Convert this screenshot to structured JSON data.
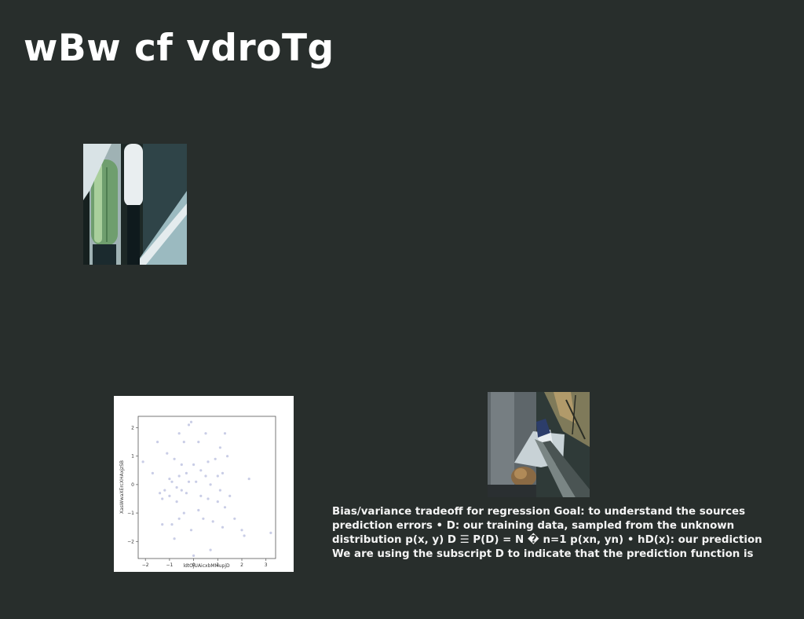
{
  "slide": {
    "title": "wBw cf vdroTg",
    "body_lines": [
      "Bias/variance tradeoff for regression Goal: to understand the sources",
      "prediction errors • D: our training data, sampled from the unknown",
      "distribution p(x, y) D ☰ P(D) = N � n=1 p(xn, yn) • hD(x): our prediction",
      "We are using the subscript D to indicate that the prediction function is"
    ]
  },
  "colors": {
    "background": "#282e2c",
    "point": "#c9cde6",
    "text": "#ffffff"
  },
  "chart_data": {
    "type": "scatter",
    "xlabel": "ldtOjUAicxbMMupjD",
    "ylabel": "XasWwaXErcXHAxjzSB",
    "xlim": [
      -2.3,
      3.4
    ],
    "ylim": [
      -2.6,
      2.4
    ],
    "xticks": [
      -2,
      -1,
      0,
      1,
      2,
      3
    ],
    "yticks": [
      -2,
      -1,
      0,
      1,
      2
    ],
    "grid": false,
    "points": [
      [
        -2.1,
        0.8
      ],
      [
        -1.7,
        0.4
      ],
      [
        -1.5,
        1.5
      ],
      [
        -1.4,
        -0.3
      ],
      [
        -1.3,
        -0.5
      ],
      [
        -1.3,
        -1.4
      ],
      [
        -1.2,
        -0.2
      ],
      [
        -1.1,
        1.1
      ],
      [
        -1.0,
        0.2
      ],
      [
        -1.0,
        -0.4
      ],
      [
        -0.9,
        0.1
      ],
      [
        -0.9,
        -1.4
      ],
      [
        -0.8,
        0.9
      ],
      [
        -0.8,
        -1.9
      ],
      [
        -0.7,
        -0.6
      ],
      [
        -0.7,
        -0.1
      ],
      [
        -0.6,
        1.8
      ],
      [
        -0.6,
        0.3
      ],
      [
        -0.5,
        0.7
      ],
      [
        -0.5,
        -0.2
      ],
      [
        -0.4,
        1.5
      ],
      [
        -0.4,
        -1.0
      ],
      [
        -0.3,
        0.4
      ],
      [
        -0.3,
        -0.3
      ],
      [
        -0.2,
        2.1
      ],
      [
        -0.2,
        0.1
      ],
      [
        -0.1,
        2.2
      ],
      [
        -0.1,
        -1.6
      ],
      [
        0.0,
        0.7
      ],
      [
        0.0,
        -2.5
      ],
      [
        0.1,
        0.1
      ],
      [
        0.2,
        1.5
      ],
      [
        0.3,
        0.5
      ],
      [
        0.3,
        -0.4
      ],
      [
        0.4,
        -1.2
      ],
      [
        0.5,
        1.8
      ],
      [
        0.5,
        0.3
      ],
      [
        0.6,
        -0.5
      ],
      [
        0.7,
        -2.3
      ],
      [
        0.7,
        0.0
      ],
      [
        0.8,
        -1.3
      ],
      [
        0.9,
        0.9
      ],
      [
        1.0,
        0.3
      ],
      [
        1.0,
        -0.6
      ],
      [
        1.1,
        1.3
      ],
      [
        1.1,
        -0.2
      ],
      [
        1.2,
        0.4
      ],
      [
        1.3,
        1.8
      ],
      [
        1.3,
        -0.8
      ],
      [
        1.4,
        1.0
      ],
      [
        1.5,
        -0.4
      ],
      [
        1.7,
        -1.2
      ],
      [
        2.0,
        -1.6
      ],
      [
        2.1,
        -1.8
      ],
      [
        2.3,
        0.2
      ],
      [
        3.2,
        -1.7
      ],
      [
        1.2,
        -1.5
      ],
      [
        0.2,
        -0.9
      ],
      [
        -0.6,
        -1.2
      ],
      [
        0.6,
        0.8
      ]
    ]
  }
}
